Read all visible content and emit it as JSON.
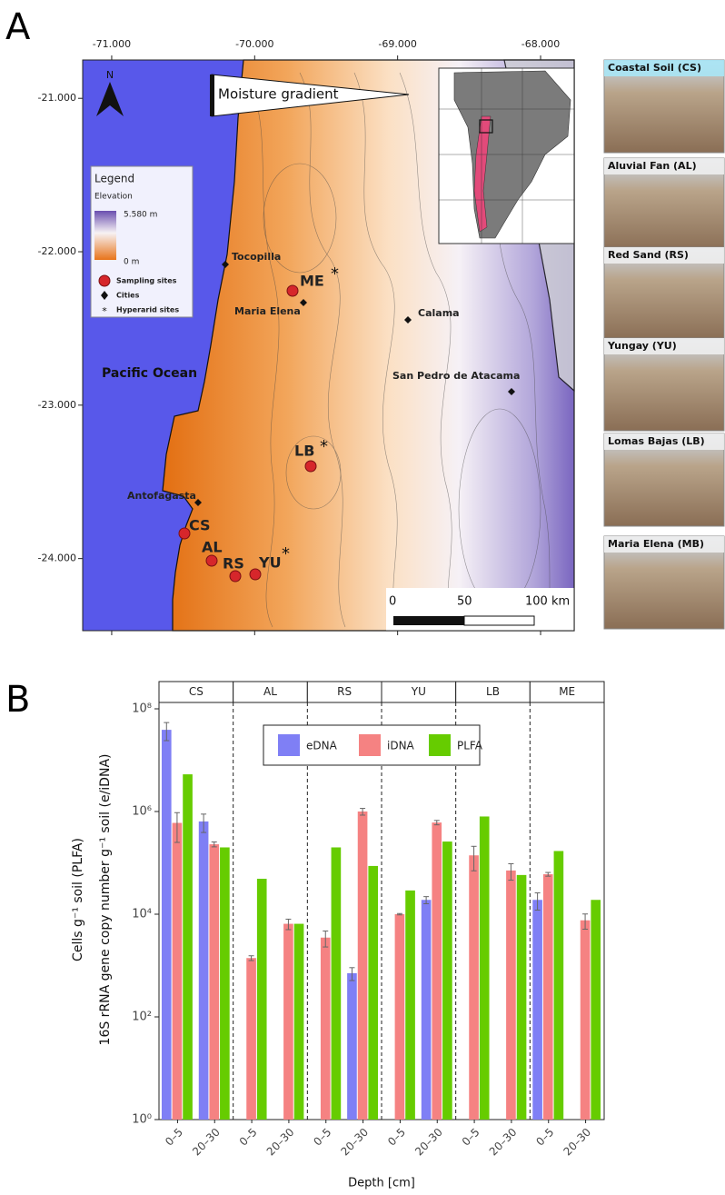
{
  "panel_labels": [
    "A",
    "B"
  ],
  "map": {
    "xlim": [
      -71.203,
      -67.765
    ],
    "ylim": [
      -24.47,
      -20.75
    ],
    "xticks": [
      {
        "value": -71,
        "label": "-71.000"
      },
      {
        "value": -70,
        "label": "-70.000"
      },
      {
        "value": -69,
        "label": "-69.000"
      },
      {
        "value": -68,
        "label": "-68.000"
      }
    ],
    "yticks": [
      {
        "value": -21,
        "label": "-21.000"
      },
      {
        "value": -22,
        "label": "-22.000"
      },
      {
        "value": -23,
        "label": "-23.000"
      },
      {
        "value": -24,
        "label": "-24.000"
      }
    ],
    "north": "N",
    "moisture_label": "Moisture gradient",
    "ocean_label": "Pacific Ocean",
    "legend": {
      "title": "Legend",
      "subtitle": "Elevation",
      "max": "5.580 m",
      "min": "0 m",
      "sites": "Sampling sites",
      "cities": "Cities",
      "hyperarid": "Hyperarid sites"
    },
    "hyperarid_symbol": "*",
    "cities": [
      "Tocopilla",
      "Maria Elena",
      "Calama",
      "San Pedro de Atacama",
      "Antofagasta"
    ],
    "sites": [
      "ME",
      "LB",
      "CS",
      "AL",
      "RS",
      "YU"
    ],
    "scale": [
      "0",
      "50",
      "100 km"
    ],
    "photos": [
      "Coastal Soil (CS)",
      "Aluvial Fan (AL)",
      "Red Sand (RS)",
      "Yungay (YU)",
      "Lomas Bajas (LB)",
      "Maria Elena (MB)"
    ]
  },
  "chart_data": {
    "type": "bar",
    "log_y": true,
    "y_label_lines": [
      "Cells g⁻¹ soil (PLFA)",
      "16S rRNA gene copy number g⁻¹ soil (e/iDNA)"
    ],
    "x_label": "Depth [cm]",
    "facets": [
      "CS",
      "AL",
      "RS",
      "YU",
      "LB",
      "ME"
    ],
    "x": [
      "0–5",
      "20–30",
      "0–5",
      "20–30",
      "0–5",
      "20–30",
      "0–5",
      "20–30",
      "0–5",
      "20–30",
      "0–5",
      "20–30"
    ],
    "ylim": [
      1,
      133000000
    ],
    "yticks": [
      {
        "value": 1,
        "label": "10⁰"
      },
      {
        "value": 100,
        "label": "10²"
      },
      {
        "value": 10000,
        "label": "10⁴"
      },
      {
        "value": 1000000,
        "label": "10⁶"
      },
      {
        "value": 100000000,
        "label": "10⁸"
      }
    ],
    "series": [
      {
        "name": "eDNA",
        "color": "#7f7ff5",
        "values": [
          39000000,
          640000,
          null,
          null,
          null,
          710,
          null,
          19000,
          null,
          null,
          19000,
          null
        ],
        "errors": [
          15000000,
          250000,
          null,
          null,
          null,
          200,
          null,
          3000,
          null,
          null,
          7000,
          null
        ]
      },
      {
        "name": "iDNA",
        "color": "#f58282",
        "values": [
          600000,
          230000,
          1400,
          6500,
          3500,
          1000000,
          10000,
          610000,
          140000,
          71000,
          60000,
          7600
        ],
        "errors": [
          350000,
          25000,
          150,
          1500,
          1200,
          150000,
          300,
          60000,
          70000,
          25000,
          5000,
          2500
        ]
      },
      {
        "name": "PLFA",
        "color": "#66cc00",
        "values": [
          5300000,
          200000,
          49000,
          6500,
          200000,
          87000,
          29000,
          260000,
          800000,
          58000,
          170000,
          19000
        ],
        "errors": [
          null,
          null,
          null,
          null,
          null,
          null,
          null,
          null,
          null,
          null,
          null,
          null
        ]
      }
    ]
  }
}
